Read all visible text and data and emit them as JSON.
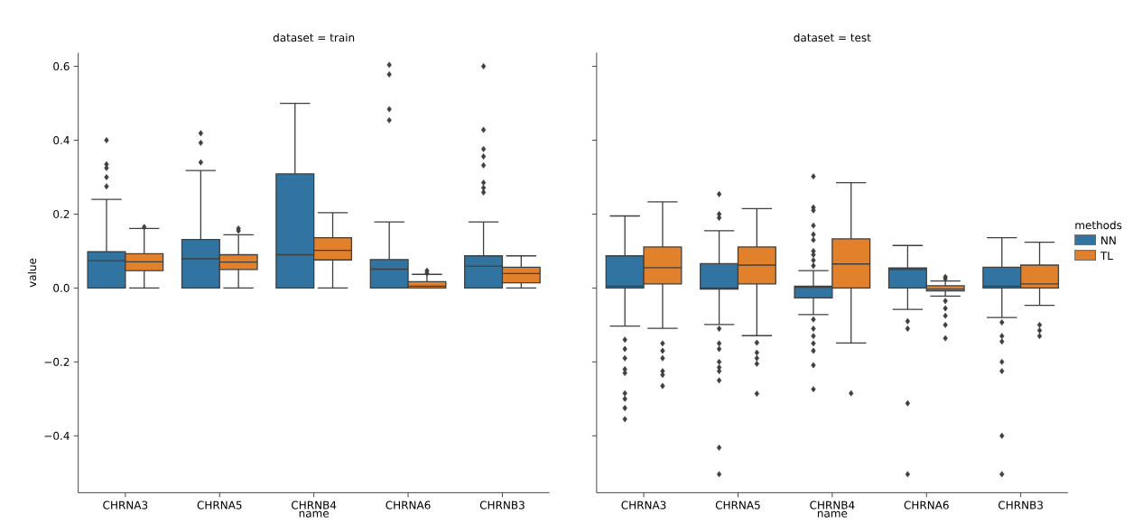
{
  "chart_data": [
    {
      "type": "box",
      "title": "dataset = train",
      "xlabel": "name",
      "ylabel": "value",
      "categories": [
        "CHRNA3",
        "CHRNA5",
        "CHRNB4",
        "CHRNA6",
        "CHRNB3"
      ],
      "ylim": [
        -0.554,
        0.637
      ],
      "yticks": [
        {
          "value": -0.4,
          "label": "−0.4"
        },
        {
          "value": -0.2,
          "label": "−0.2"
        },
        {
          "value": 0.0,
          "label": "0.0"
        },
        {
          "value": 0.2,
          "label": "0.2"
        },
        {
          "value": 0.4,
          "label": "0.4"
        },
        {
          "value": 0.6,
          "label": "0.6"
        }
      ],
      "marker": "diamond",
      "series": [
        {
          "color": "#3274a1",
          "boxes": [
            {
              "low": 0.0,
              "q1": 0.0,
              "median": 0.074,
              "q3": 0.098,
              "high": 0.24,
              "outliers": [
                0.4,
                0.335,
                0.325,
                0.3,
                0.275
              ]
            },
            {
              "low": 0.0,
              "q1": 0.0,
              "median": 0.079,
              "q3": 0.131,
              "high": 0.318,
              "outliers": [
                0.419,
                0.393,
                0.34
              ]
            },
            {
              "low": 0.0,
              "q1": 0.0,
              "median": 0.09,
              "q3": 0.309,
              "high": 0.5
            },
            {
              "low": 0.0,
              "q1": 0.0,
              "median": 0.051,
              "q3": 0.077,
              "high": 0.179,
              "outliers": [
                0.604,
                0.578,
                0.484,
                0.454
              ]
            },
            {
              "low": 0.0,
              "q1": 0.0,
              "median": 0.059,
              "q3": 0.087,
              "high": 0.179,
              "outliers": [
                0.6,
                0.428,
                0.376,
                0.356,
                0.332,
                0.285,
                0.271,
                0.259
              ]
            }
          ]
        },
        {
          "color": "#e1812c",
          "boxes": [
            {
              "low": 0.0,
              "q1": 0.047,
              "median": 0.071,
              "q3": 0.093,
              "high": 0.161,
              "outliers": [
                0.165
              ]
            },
            {
              "low": 0.0,
              "q1": 0.05,
              "median": 0.07,
              "q3": 0.09,
              "high": 0.144,
              "outliers": [
                0.161,
                0.155
              ]
            },
            {
              "low": 0.0,
              "q1": 0.076,
              "median": 0.102,
              "q3": 0.136,
              "high": 0.204
            },
            {
              "low": 0.0,
              "q1": 0.0,
              "median": 0.005,
              "q3": 0.017,
              "high": 0.037,
              "outliers": [
                0.047,
                0.04
              ]
            },
            {
              "low": 0.0,
              "q1": 0.014,
              "median": 0.039,
              "q3": 0.056,
              "high": 0.087
            }
          ]
        }
      ]
    },
    {
      "type": "box",
      "title": "dataset = test",
      "xlabel": "name",
      "legend_title": "methods",
      "legend": "right",
      "tick_labels": "x",
      "categories": [
        "CHRNA3",
        "CHRNA5",
        "CHRNB4",
        "CHRNA6",
        "CHRNB3"
      ],
      "ylim": [
        -0.554,
        0.637
      ],
      "yticks": [
        {
          "value": -0.4,
          "label": null
        },
        {
          "value": -0.2,
          "label": null
        },
        {
          "value": 0.0,
          "label": null
        },
        {
          "value": 0.2,
          "label": null
        },
        {
          "value": 0.4,
          "label": null
        },
        {
          "value": 0.6,
          "label": null
        }
      ],
      "marker": "diamond",
      "series": [
        {
          "name": "NN",
          "color": "#3274a1",
          "boxes": [
            {
              "low": -0.103,
              "q1": 0.0,
              "median": 0.005,
              "q3": 0.087,
              "high": 0.195,
              "outliers": [
                -0.14,
                -0.165,
                -0.19,
                -0.22,
                -0.23,
                -0.285,
                -0.3,
                -0.325,
                -0.355
              ]
            },
            {
              "low": -0.099,
              "q1": -0.003,
              "median": 0.0,
              "q3": 0.066,
              "high": 0.155,
              "outliers": [
                0.254,
                0.2,
                0.19,
                -0.11,
                -0.15,
                -0.165,
                -0.2,
                -0.215,
                -0.225,
                -0.25,
                -0.432,
                -0.504
              ]
            },
            {
              "low": -0.072,
              "q1": -0.027,
              "median": 0.002,
              "q3": 0.005,
              "high": 0.047,
              "outliers": [
                0.302,
                0.218,
                0.21,
                0.169,
                0.145,
                0.13,
                0.1,
                0.09,
                0.075,
                0.06,
                -0.085,
                -0.11,
                -0.13,
                -0.15,
                -0.17,
                -0.209,
                -0.274
              ]
            },
            {
              "low": -0.058,
              "q1": 0.0,
              "median": 0.05,
              "q3": 0.054,
              "high": 0.115,
              "outliers": [
                -0.09,
                -0.11,
                -0.312,
                -0.504
              ]
            },
            {
              "low": -0.08,
              "q1": 0.0,
              "median": 0.005,
              "q3": 0.056,
              "high": 0.136,
              "outliers": [
                -0.093,
                -0.13,
                -0.145,
                -0.2,
                -0.225,
                -0.4,
                -0.504
              ]
            }
          ]
        },
        {
          "name": "TL",
          "color": "#e1812c",
          "boxes": [
            {
              "low": -0.109,
              "q1": 0.011,
              "median": 0.055,
              "q3": 0.111,
              "high": 0.233,
              "outliers": [
                -0.15,
                -0.17,
                -0.19,
                -0.225,
                -0.235,
                -0.265
              ]
            },
            {
              "low": -0.129,
              "q1": 0.011,
              "median": 0.062,
              "q3": 0.111,
              "high": 0.215,
              "outliers": [
                -0.148,
                -0.175,
                -0.19,
                -0.205,
                -0.286
              ]
            },
            {
              "low": -0.149,
              "q1": 0.0,
              "median": 0.065,
              "q3": 0.133,
              "high": 0.285,
              "outliers": [
                -0.285
              ]
            },
            {
              "low": -0.022,
              "q1": -0.008,
              "median": -0.003,
              "q3": 0.006,
              "high": 0.019,
              "outliers": [
                0.03,
                0.025,
                -0.035,
                -0.055,
                -0.075,
                -0.1,
                -0.136
              ]
            },
            {
              "low": -0.047,
              "q1": 0.0,
              "median": 0.011,
              "q3": 0.062,
              "high": 0.124,
              "outliers": [
                -0.1,
                -0.115,
                -0.13
              ]
            }
          ]
        }
      ]
    }
  ]
}
